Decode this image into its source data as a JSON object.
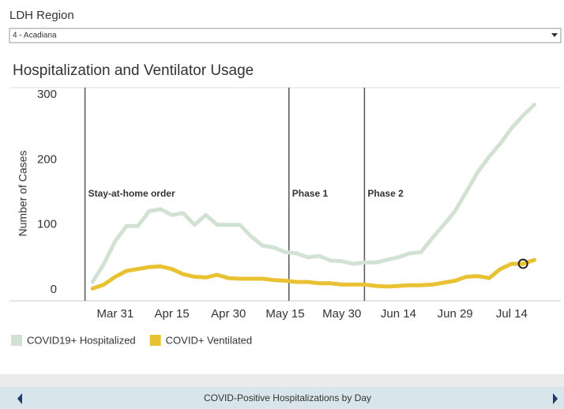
{
  "filter": {
    "label": "LDH Region",
    "value": "4 - Acadiana"
  },
  "chart_data": {
    "type": "line",
    "title": "Hospitalization and Ventilator Usage",
    "y_label": "Number of Cases",
    "x": [
      "Mar 25",
      "Mar 28",
      "Mar 31",
      "Apr 3",
      "Apr 6",
      "Apr 9",
      "Apr 12",
      "Apr 15",
      "Apr 18",
      "Apr 21",
      "Apr 24",
      "Apr 27",
      "Apr 30",
      "May 3",
      "May 6",
      "May 9",
      "May 12",
      "May 15",
      "May 18",
      "May 21",
      "May 24",
      "May 27",
      "May 30",
      "Jun 2",
      "Jun 5",
      "Jun 8",
      "Jun 11",
      "Jun 14",
      "Jun 17",
      "Jun 20",
      "Jun 23",
      "Jun 26",
      "Jun 29",
      "Jul 2",
      "Jul 5",
      "Jul 8",
      "Jul 11",
      "Jul 14",
      "Jul 17",
      "Jul 20"
    ],
    "series": [
      {
        "name": "COVID19+ Hospitalized",
        "color": "#d2e2d2",
        "values": [
          12,
          40,
          75,
          98,
          98,
          121,
          124,
          115,
          118,
          100,
          115,
          100,
          100,
          100,
          82,
          68,
          65,
          58,
          56,
          50,
          52,
          45,
          44,
          40,
          42,
          42,
          46,
          50,
          56,
          58,
          80,
          100,
          121,
          151,
          181,
          205,
          225,
          249,
          268,
          285
        ]
      },
      {
        "name": "COVID+ Ventilated",
        "color": "#e8c232",
        "values": [
          2,
          8,
          20,
          29,
          32,
          35,
          36,
          32,
          24,
          20,
          19,
          23,
          18,
          17,
          17,
          17,
          15,
          14,
          12,
          12,
          10,
          10,
          8,
          8,
          8,
          6,
          5,
          6,
          7,
          7,
          8,
          11,
          14,
          20,
          21,
          18,
          32,
          40,
          40,
          46
        ]
      }
    ],
    "highlight": {
      "series": 1,
      "index": 38
    },
    "xlim": [
      "Mar 3",
      "Jul 27"
    ],
    "xticks": [
      "Mar 31",
      "Apr 15",
      "Apr 30",
      "May 15",
      "May 30",
      "Jun 14",
      "Jun 29",
      "Jul 14"
    ],
    "ylim": [
      -17,
      311
    ],
    "yticks": [
      0,
      100,
      200,
      300
    ],
    "grid": false,
    "annotations": [
      {
        "x": "Mar 23",
        "text": "Stay-at-home order"
      },
      {
        "x": "May 16",
        "text": "Phase 1"
      },
      {
        "x": "Jun 5",
        "text": "Phase 2"
      }
    ],
    "legend": "bottom-left"
  },
  "footer": {
    "title": "COVID-Positive Hospitalizations by Day"
  }
}
